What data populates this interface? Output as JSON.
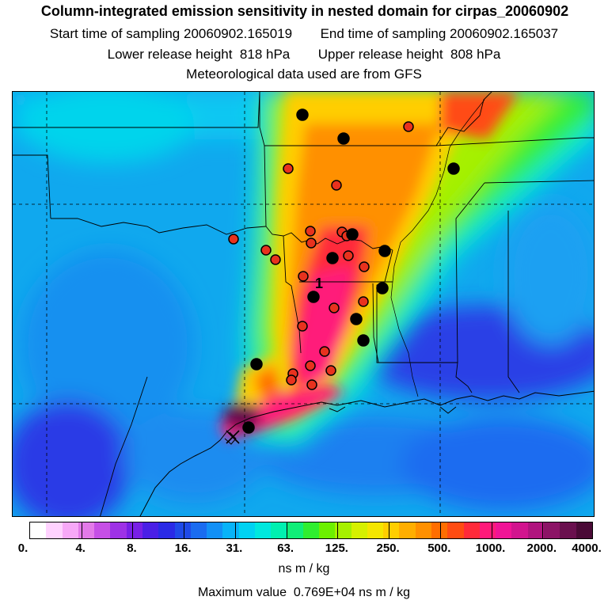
{
  "title": "Column-integrated emission sensitivity in nested domain for cirpas_20060902",
  "start_label": "Start time of sampling",
  "start_value": "20060902.165019",
  "end_label": "End time of sampling",
  "end_value": "20060902.165037",
  "lower_label": "Lower release height",
  "lower_value": "818 hPa",
  "upper_label": "Upper release height",
  "upper_value": "808 hPa",
  "met_line": "Meteorological data used are from GFS",
  "release_marker": "1",
  "colorbar": {
    "colors": [
      "#ffffff",
      "#ffd2ff",
      "#f7a8f7",
      "#e37ae9",
      "#c64fe6",
      "#9e32e6",
      "#7820e6",
      "#4a1fe6",
      "#2a2ae6",
      "#1f4ae8",
      "#1a6cf0",
      "#1290f6",
      "#08b3f8",
      "#00d2f2",
      "#00e8de",
      "#00f0b0",
      "#10ee78",
      "#30ee30",
      "#6cf000",
      "#a6f000",
      "#d6f000",
      "#f4e600",
      "#ffce00",
      "#ffae00",
      "#ff9000",
      "#ff6e00",
      "#ff4c12",
      "#ff2a3a",
      "#ff1a7a",
      "#f01496",
      "#d2148e",
      "#b0147e",
      "#8c1466",
      "#6a104e",
      "#4a0a36"
    ],
    "tick_labels": [
      "0.",
      "4.",
      "8.",
      "16.",
      "31.",
      "63.",
      "125.",
      "250.",
      "500.",
      "1000.",
      "2000.",
      "4000."
    ]
  },
  "units": "ns m / kg",
  "max_label": "Maximum value",
  "max_value": "0.769E+04 ns m / kg"
}
